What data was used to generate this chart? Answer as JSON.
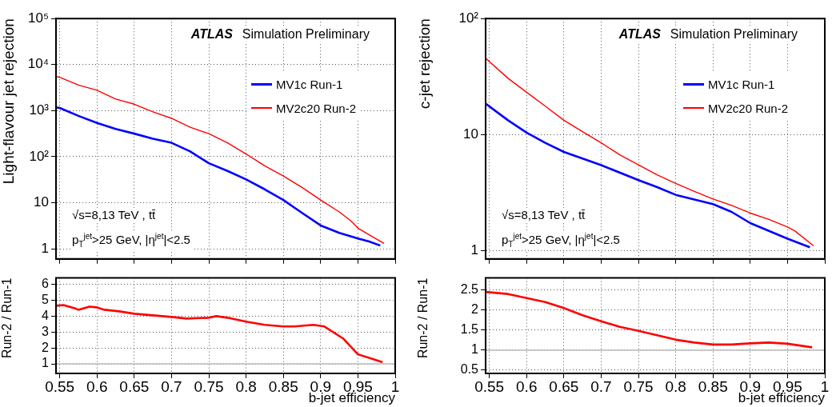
{
  "chart_data": [
    {
      "type": "line",
      "ylabel": "Light-flavour jet rejection",
      "log": "y",
      "grid": true,
      "legend": "top right",
      "line_style": "solid",
      "marker": "none",
      "tick_labels": "y",
      "xlim": [
        0.545,
        1
      ],
      "xticks": [
        0.55,
        0.6,
        0.65,
        0.7,
        0.75,
        0.8,
        0.85,
        0.9,
        0.95,
        1
      ],
      "ylim": [
        0.6,
        100000
      ],
      "yticks": [
        {
          "value": 1,
          "label": "1"
        },
        {
          "value": 10,
          "label": "10"
        },
        {
          "value": 100,
          "label": "10²"
        },
        {
          "value": 1000,
          "label": "10³"
        },
        {
          "value": 10000,
          "label": "10⁴"
        },
        {
          "value": 100000,
          "label": "10⁵"
        }
      ],
      "annotations": [
        "ATLAS",
        "Simulation Preliminary",
        "√s=8,13 TeV , tt̄",
        "p$_{T}$$^{jet}$>25 GeV, |η$^{jet}$|<2.5"
      ],
      "series": [
        {
          "name": "MV1c Run-1",
          "color": "#0000ff",
          "x": [
            0.545,
            0.55,
            0.575,
            0.6,
            0.625,
            0.65,
            0.675,
            0.7,
            0.725,
            0.75,
            0.775,
            0.8,
            0.825,
            0.85,
            0.875,
            0.9,
            0.925,
            0.95,
            0.965,
            0.98
          ],
          "values": [
            1170,
            1140,
            770,
            540,
            400,
            316,
            245,
            200,
            130,
            72,
            49,
            32,
            19.5,
            11.4,
            6,
            3.2,
            2.2,
            1.67,
            1.43,
            1.17
          ]
        },
        {
          "name": "MV2c20 Run-2",
          "color": "#ff0000",
          "x": [
            0.545,
            0.55,
            0.575,
            0.6,
            0.625,
            0.65,
            0.675,
            0.7,
            0.725,
            0.75,
            0.775,
            0.8,
            0.825,
            0.85,
            0.875,
            0.9,
            0.925,
            0.94,
            0.95,
            0.965,
            0.985
          ],
          "values": [
            5500,
            5300,
            3600,
            2770,
            1780,
            1380,
            940,
            680,
            435,
            316,
            200,
            114,
            63,
            38,
            21.5,
            11.4,
            6.3,
            4.1,
            2.8,
            2,
            1.3
          ]
        }
      ]
    },
    {
      "type": "line",
      "ylabel": "c-jet rejection",
      "log": "y",
      "grid": true,
      "legend": "top right",
      "line_style": "solid",
      "marker": "none",
      "tick_labels": "y",
      "xlim": [
        0.545,
        1
      ],
      "xticks": [
        0.55,
        0.6,
        0.65,
        0.7,
        0.75,
        0.8,
        0.85,
        0.9,
        0.95,
        1
      ],
      "ylim": [
        0.85,
        100
      ],
      "yticks": [
        {
          "value": 1,
          "label": "1"
        },
        {
          "value": 10,
          "label": "10"
        },
        {
          "value": 100,
          "label": "10²"
        }
      ],
      "annotations": [
        "ATLAS",
        "Simulation Preliminary",
        "√s=8,13 TeV , tt̄",
        "p$_{T}$$^{jet}$>25 GeV, |η$^{jet}$|<2.5"
      ],
      "series": [
        {
          "name": "MV1c Run-1",
          "color": "#0000ff",
          "x": [
            0.545,
            0.575,
            0.6,
            0.625,
            0.65,
            0.7,
            0.75,
            0.775,
            0.8,
            0.85,
            0.875,
            0.9,
            0.95,
            0.98
          ],
          "values": [
            18.5,
            13.3,
            10.4,
            8.5,
            7.1,
            5.46,
            4.06,
            3.53,
            3.03,
            2.52,
            2.16,
            1.73,
            1.27,
            1.07
          ]
        },
        {
          "name": "MV2c20 Run-2",
          "color": "#ff0000",
          "x": [
            0.545,
            0.575,
            0.6,
            0.625,
            0.65,
            0.675,
            0.7,
            0.725,
            0.75,
            0.775,
            0.8,
            0.825,
            0.85,
            0.875,
            0.9,
            0.925,
            0.95,
            0.96,
            0.985
          ],
          "values": [
            45.5,
            30.6,
            23.2,
            17.6,
            13.3,
            10.6,
            8.5,
            6.7,
            5.5,
            4.5,
            3.8,
            3.24,
            2.79,
            2.46,
            2.11,
            1.86,
            1.6,
            1.48,
            1.1
          ]
        }
      ]
    },
    {
      "type": "line",
      "xlabel": "b-jet efficiency",
      "ylabel": "Run-2 / Run-1",
      "grid": true,
      "line_style": "solid",
      "marker": "none",
      "xlim": [
        0.545,
        1
      ],
      "xticks": [
        0.55,
        0.6,
        0.65,
        0.7,
        0.75,
        0.8,
        0.85,
        0.9,
        0.95,
        1
      ],
      "ylim": [
        0.4,
        6.4
      ],
      "yticks": [
        1,
        2,
        3,
        4,
        5,
        6
      ],
      "ref_lines": [
        {
          "axis": "y",
          "value": 1,
          "color": "#bbbbbb"
        }
      ],
      "series": [
        {
          "color": "#ff0000",
          "x": [
            0.545,
            0.555,
            0.57,
            0.575,
            0.59,
            0.6,
            0.61,
            0.62,
            0.63,
            0.65,
            0.675,
            0.7,
            0.72,
            0.75,
            0.76,
            0.775,
            0.8,
            0.825,
            0.85,
            0.865,
            0.89,
            0.905,
            0.93,
            0.95,
            0.97,
            0.983
          ],
          "values": [
            4.65,
            4.7,
            4.5,
            4.4,
            4.6,
            4.55,
            4.4,
            4.35,
            4.3,
            4.15,
            4.05,
            3.95,
            3.85,
            3.9,
            4,
            3.9,
            3.65,
            3.45,
            3.35,
            3.35,
            3.45,
            3.35,
            2.6,
            1.6,
            1.3,
            1.1
          ]
        }
      ]
    },
    {
      "type": "line",
      "xlabel": "b-jet efficiency",
      "ylabel": "Run-2 / Run-1",
      "grid": true,
      "line_style": "solid",
      "marker": "none",
      "xlim": [
        0.545,
        1
      ],
      "xticks": [
        0.55,
        0.6,
        0.65,
        0.7,
        0.75,
        0.8,
        0.85,
        0.9,
        0.95,
        1
      ],
      "ylim": [
        0.42,
        2.8
      ],
      "yticks": [
        0.5,
        1,
        1.5,
        2,
        2.5
      ],
      "ref_lines": [
        {
          "axis": "y",
          "value": 1,
          "color": "#bbbbbb"
        }
      ],
      "series": [
        {
          "color": "#ff0000",
          "x": [
            0.545,
            0.575,
            0.6,
            0.625,
            0.65,
            0.675,
            0.7,
            0.725,
            0.75,
            0.775,
            0.8,
            0.825,
            0.85,
            0.875,
            0.9,
            0.925,
            0.95,
            0.983
          ],
          "values": [
            2.45,
            2.4,
            2.3,
            2.2,
            2.05,
            1.87,
            1.72,
            1.58,
            1.48,
            1.37,
            1.26,
            1.19,
            1.14,
            1.14,
            1.17,
            1.19,
            1.16,
            1.07
          ]
        }
      ]
    }
  ]
}
